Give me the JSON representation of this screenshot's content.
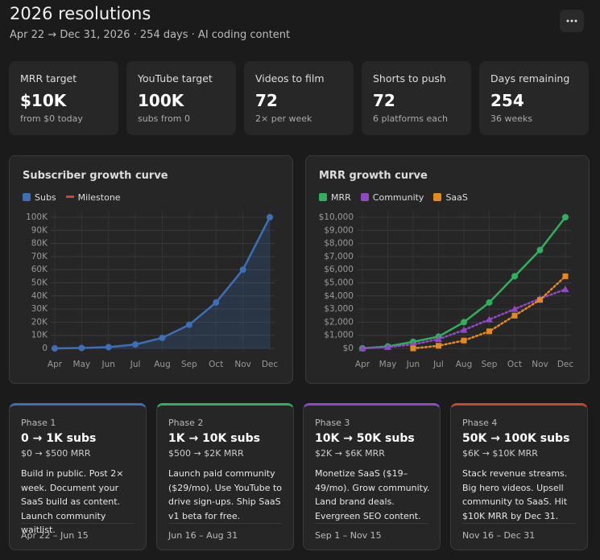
{
  "header": {
    "title": "2026 resolutions",
    "subtitle": "Apr 22 → Dec 31, 2026 · 254 days · AI coding content"
  },
  "stats": [
    {
      "label": "MRR target",
      "value": "$10K",
      "sub": "from $0 today"
    },
    {
      "label": "YouTube target",
      "value": "100K",
      "sub": "subs from 0"
    },
    {
      "label": "Videos to film",
      "value": "72",
      "sub": "2× per week"
    },
    {
      "label": "Shorts to push",
      "value": "72",
      "sub": "6 platforms each"
    },
    {
      "label": "Days remaining",
      "value": "254",
      "sub": "36 weeks"
    }
  ],
  "chart_data": [
    {
      "type": "line",
      "title": "Subscriber growth curve",
      "categories": [
        "Apr",
        "May",
        "Jun",
        "Jul",
        "Aug",
        "Sep",
        "Oct",
        "Nov",
        "Dec"
      ],
      "series": [
        {
          "name": "Subs",
          "color": "#3d6fb6",
          "marker": "circle",
          "fill": true,
          "values": [
            0,
            300,
            1000,
            3000,
            8000,
            18000,
            35000,
            60000,
            100000
          ]
        },
        {
          "name": "Milestone",
          "color": "#c8472e",
          "legend": "line",
          "values": [
            null,
            null,
            null,
            null,
            null,
            null,
            null,
            null,
            null
          ]
        }
      ],
      "ylim": [
        0,
        100000
      ],
      "yticks": [
        0,
        {
          "value": 10000,
          "label": "10K"
        },
        {
          "value": 20000,
          "label": "20K"
        },
        {
          "value": 30000,
          "label": "30K"
        },
        {
          "value": 40000,
          "label": "40K"
        },
        {
          "value": 50000,
          "label": "50K"
        },
        {
          "value": 60000,
          "label": "60K"
        },
        {
          "value": 70000,
          "label": "70K"
        },
        {
          "value": 80000,
          "label": "80K"
        },
        {
          "value": 90000,
          "label": "90K"
        },
        {
          "value": 100000,
          "label": "100K"
        }
      ],
      "grid": true
    },
    {
      "type": "line",
      "title": "MRR growth curve",
      "categories": [
        "Apr",
        "May",
        "Jun",
        "Jul",
        "Aug",
        "Sep",
        "Oct",
        "Nov",
        "Dec"
      ],
      "series": [
        {
          "name": "MRR",
          "color": "#2fb05b",
          "marker": "circle",
          "values": [
            0,
            150,
            500,
            900,
            2000,
            3500,
            5500,
            7500,
            10000
          ]
        },
        {
          "name": "Community",
          "color": "#9148c6",
          "marker": "triangle",
          "dash": true,
          "values": [
            0,
            100,
            300,
            700,
            1400,
            2200,
            3000,
            3800,
            4500
          ]
        },
        {
          "name": "SaaS",
          "color": "#e58a1f",
          "marker": "square",
          "dash": true,
          "values": [
            null,
            null,
            0,
            200,
            600,
            1300,
            2500,
            3700,
            5500
          ]
        }
      ],
      "ylim": [
        0,
        10000
      ],
      "yticks": [
        {
          "value": 0,
          "label": "$0"
        },
        {
          "value": 1000,
          "label": "$1,000"
        },
        {
          "value": 2000,
          "label": "$2,000"
        },
        {
          "value": 3000,
          "label": "$3,000"
        },
        {
          "value": 4000,
          "label": "$4,000"
        },
        {
          "value": 5000,
          "label": "$5,000"
        },
        {
          "value": 6000,
          "label": "$6,000"
        },
        {
          "value": 7000,
          "label": "$7,000"
        },
        {
          "value": 8000,
          "label": "$8,000"
        },
        {
          "value": 9000,
          "label": "$9,000"
        },
        {
          "value": 10000,
          "label": "$10,000"
        }
      ],
      "grid": true
    }
  ],
  "phases": [
    {
      "label": "Phase 1",
      "title": "0 → 1K subs",
      "mrr": "$0 → $500 MRR",
      "color": "#3d6fb6",
      "description": "Build in public. Post 2× week. Document your SaaS build as content. Launch community waitlist.",
      "dates": "Apr 22 – Jun 15"
    },
    {
      "label": "Phase 2",
      "title": "1K → 10K subs",
      "mrr": "$500 → $2K MRR",
      "color": "#2fb05b",
      "description": "Launch paid community ($29/mo). Use YouTube to drive sign-ups. Ship SaaS v1 beta for free.",
      "dates": "Jun 16 – Aug 31"
    },
    {
      "label": "Phase 3",
      "title": "10K → 50K subs",
      "mrr": "$2K → $6K MRR",
      "color": "#9148c6",
      "description": "Monetize SaaS ($19–49/mo). Grow community. Land brand deals. Evergreen SEO content.",
      "dates": "Sep 1 – Nov 15"
    },
    {
      "label": "Phase 4",
      "title": "50K → 100K subs",
      "mrr": "$6K → $10K MRR",
      "color": "#c8472e",
      "description": "Stack revenue streams. Big hero videos. Upsell community to SaaS. Hit $10K MRR by Dec 31.",
      "dates": "Nov 16 – Dec 31"
    }
  ]
}
